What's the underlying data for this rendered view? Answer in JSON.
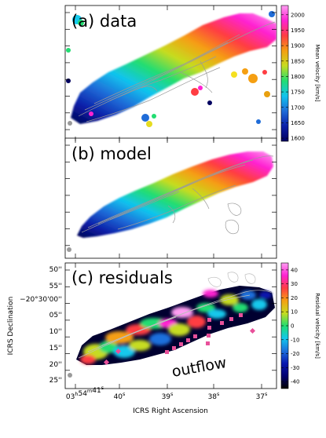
{
  "chart_data": [
    {
      "type": "heatmap",
      "panel_label": "(a) data",
      "colorbar": {
        "label": "Mean velocity [km/s]",
        "ticks": [
          1600,
          1650,
          1700,
          1750,
          1800,
          1850,
          1900,
          1950,
          2000
        ],
        "range": [
          1590,
          2030
        ],
        "colormap": [
          "#000060",
          "#0b1fa8",
          "#1f6cd8",
          "#10c4ee",
          "#22dd72",
          "#c6dc20",
          "#f59f12",
          "#ff3d42",
          "#ff22d2",
          "#ff9ef2"
        ]
      },
      "velocity_field": {
        "southeast_end_kms": 1600,
        "systemic_kms": 1800,
        "northwest_end_kms": 2030,
        "orientation": "receding side to the upper right, approaching side to the lower left"
      },
      "contours": "grey intensity contours overlaid",
      "ylabel": ""
    },
    {
      "type": "heatmap",
      "panel_label": "(b) model",
      "colorbar": null,
      "velocity_field": {
        "southeast_end_kms": 1600,
        "systemic_kms": 1800,
        "northwest_end_kms": 2030
      },
      "contours": "grey intensity contours overlaid"
    },
    {
      "type": "heatmap",
      "panel_label": "(c) residuals",
      "colorbar": {
        "label": "Residual velocity [km/s]",
        "ticks": [
          -40,
          -30,
          -20,
          -10,
          0,
          10,
          20,
          30,
          40
        ],
        "range": [
          -45,
          45
        ],
        "colormap": [
          "#000000",
          "#000070",
          "#0818b0",
          "#1c70dc",
          "#12c8ec",
          "#22dd72",
          "#c6dc20",
          "#f59f12",
          "#ff3d42",
          "#ff22d2",
          "#ff9ef2"
        ]
      },
      "annotation": "outflow",
      "outflow_marker_color": "#e8509a",
      "xlabel": "ICRS Right Ascension",
      "ylabel": "ICRS Declination",
      "x_ticks": [
        "03h54m41s",
        "40s",
        "39s",
        "38s",
        "37s"
      ],
      "y_ticks": [
        "50''",
        "55''",
        "−20°30'00''",
        "05''",
        "10''",
        "15''",
        "20''",
        "25''"
      ]
    }
  ]
}
